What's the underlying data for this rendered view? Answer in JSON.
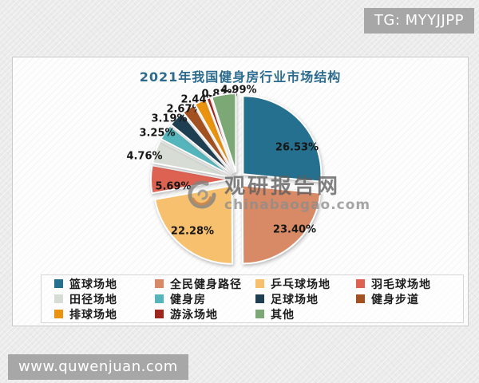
{
  "overlays": {
    "tg_badge": "TG: MYYJJPP",
    "site_badge": "www.quwenjuan.com"
  },
  "watermark": {
    "logo_icon": "swirl-logo",
    "name": "观研报告网",
    "domain": "chinabaogao.com"
  },
  "chart_data": {
    "type": "pie",
    "title": "2021年我国健身房行业市场结构",
    "unit": "%",
    "style": "exploded",
    "legend_position": "bottom",
    "legend_columns": 4,
    "slices": [
      {
        "label": "篮球场地",
        "value": 26.53,
        "color": "#26708f"
      },
      {
        "label": "全民健身路径",
        "value": 23.4,
        "color": "#d88a66"
      },
      {
        "label": "乒乓球场地",
        "value": 22.28,
        "color": "#f7c06e"
      },
      {
        "label": "羽毛球场地",
        "value": 5.69,
        "color": "#dd6252"
      },
      {
        "label": "田径场地",
        "value": 4.76,
        "color": "#d7dcd4"
      },
      {
        "label": "健身房",
        "value": 3.25,
        "color": "#55b5bc"
      },
      {
        "label": "足球场地",
        "value": 3.19,
        "color": "#1e3f51"
      },
      {
        "label": "健身步道",
        "value": 2.67,
        "color": "#a35120"
      },
      {
        "label": "排球场地",
        "value": 2.44,
        "color": "#e9930f"
      },
      {
        "label": "游泳场地",
        "value": 0.82,
        "color": "#9e261c"
      },
      {
        "label": "其他",
        "value": 4.99,
        "color": "#7ca876"
      }
    ]
  }
}
